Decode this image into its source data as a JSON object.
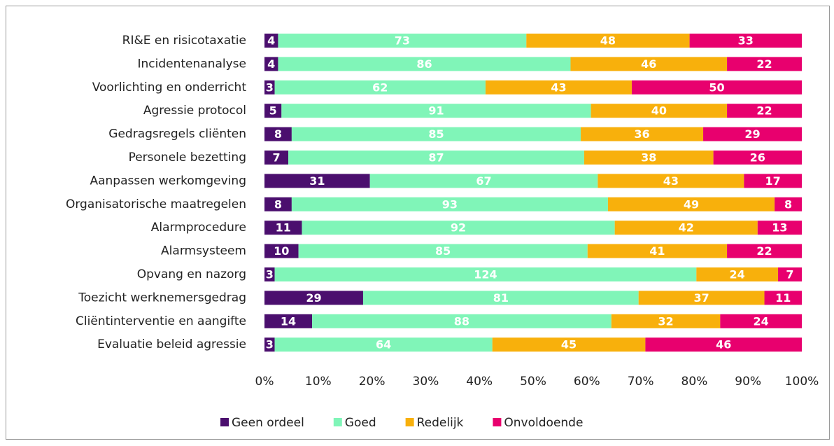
{
  "chart_data": {
    "type": "bar",
    "orientation": "horizontal",
    "stacked": "percent",
    "categories": [
      "RI&E en risicotaxatie",
      "Incidentenanalyse",
      "Voorlichting en onderricht",
      "Agressie protocol",
      "Gedragsregels cliënten",
      "Personele bezetting",
      "Aanpassen werkomgeving",
      "Organisatorische maatregelen",
      "Alarmprocedure",
      "Alarmsysteem",
      "Opvang en nazorg",
      "Toezicht werknemersgedrag",
      "Cliëntinterventie en aangifte",
      "Evaluatie beleid agressie"
    ],
    "series": [
      {
        "name": "Geen ordeel",
        "color": "#4b0f6e",
        "values": [
          4,
          4,
          3,
          5,
          8,
          7,
          31,
          8,
          11,
          10,
          3,
          29,
          14,
          3
        ]
      },
      {
        "name": "Goed",
        "color": "#80f5b8",
        "values": [
          73,
          86,
          62,
          91,
          85,
          87,
          67,
          93,
          92,
          85,
          124,
          81,
          88,
          64
        ]
      },
      {
        "name": "Redelijk",
        "color": "#f8b00c",
        "values": [
          48,
          46,
          43,
          40,
          36,
          38,
          43,
          49,
          42,
          41,
          24,
          37,
          32,
          45
        ]
      },
      {
        "name": "Onvoldoende",
        "color": "#e8006e",
        "values": [
          33,
          22,
          50,
          22,
          29,
          26,
          17,
          8,
          13,
          22,
          7,
          11,
          24,
          46
        ]
      }
    ],
    "xlim": [
      0,
      100
    ],
    "xticks": [
      {
        "value": 0,
        "label": "0%"
      },
      {
        "value": 10,
        "label": "10%"
      },
      {
        "value": 20,
        "label": "20%"
      },
      {
        "value": 30,
        "label": "30%"
      },
      {
        "value": 40,
        "label": "40%"
      },
      {
        "value": 50,
        "label": "50%"
      },
      {
        "value": 60,
        "label": "60%"
      },
      {
        "value": 70,
        "label": "70%"
      },
      {
        "value": 80,
        "label": "80%"
      },
      {
        "value": 90,
        "label": "90%"
      },
      {
        "value": 100,
        "label": "100%"
      }
    ],
    "legend": "bottom"
  }
}
